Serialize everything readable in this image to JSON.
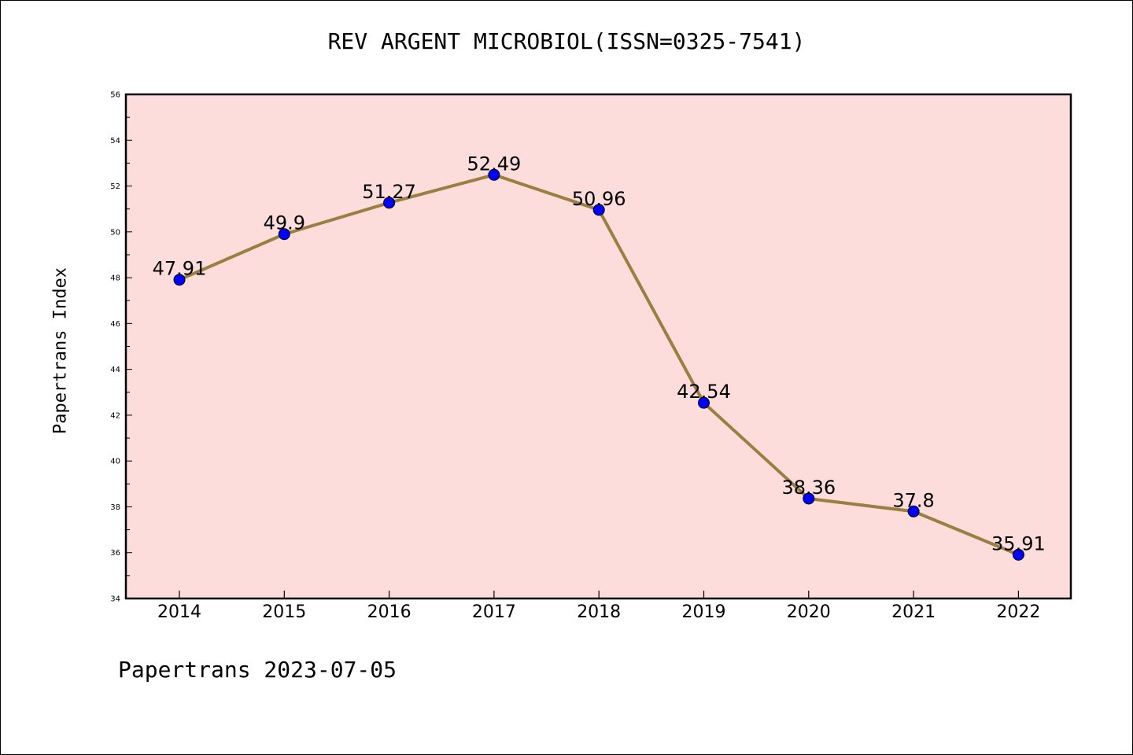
{
  "chart_data": {
    "type": "line",
    "title": "REV ARGENT MICROBIOL(ISSN=0325-7541)",
    "ylabel": "Papertrans Index",
    "xlabel": "",
    "categories": [
      "2014",
      "2015",
      "2016",
      "2017",
      "2018",
      "2019",
      "2020",
      "2021",
      "2022"
    ],
    "series": [
      {
        "values": [
          47.91,
          49.9,
          51.27,
          52.49,
          50.96,
          42.54,
          38.36,
          37.8,
          35.91
        ],
        "labels": [
          "47.91",
          "49.9",
          "51.27",
          "52.49",
          "50.96",
          "42.54",
          "38.36",
          "37.8",
          "35.91"
        ]
      }
    ],
    "ylim": [
      34,
      56
    ],
    "yticks": [
      "34",
      "36",
      "38",
      "40",
      "42",
      "44",
      "46",
      "48",
      "50",
      "52",
      "54",
      "56"
    ],
    "grid": false,
    "colors": {
      "line": "#9a8040",
      "marker": "#0000ff",
      "plot_bg": "#fddcdc"
    }
  },
  "footer": "Papertrans 2023-07-05"
}
